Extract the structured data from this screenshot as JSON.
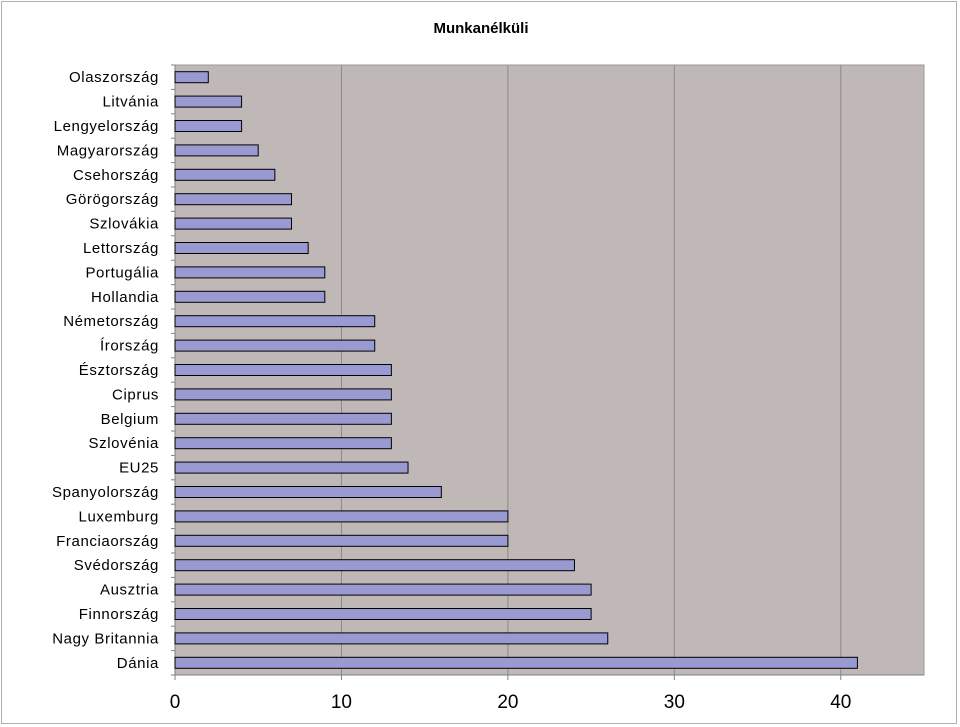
{
  "colors": {
    "plot_background": "#c0b8b6",
    "bar_fill": "#9a9ad2",
    "bar_stroke": "#000000",
    "gridline": "#8a8a8a",
    "axis": "#808080"
  },
  "chart_data": {
    "type": "bar",
    "orientation": "horizontal",
    "title": "Munkanélküli",
    "xlabel": "",
    "ylabel": "",
    "categories": [
      "Olaszország",
      "Litvánia",
      "Lengyelország",
      "Magyarország",
      "Csehország",
      "Görögország",
      "Szlovákia",
      "Lettország",
      "Portugália",
      "Hollandia",
      "Németország",
      "Írország",
      "Észtország",
      "Ciprus",
      "Belgium",
      "Szlovénia",
      "EU25",
      "Spanyolország",
      "Luxemburg",
      "Franciaország",
      "Svédország",
      "Ausztria",
      "Finnország",
      "Nagy Britannia",
      "Dánia"
    ],
    "values": [
      2,
      4,
      4,
      5,
      6,
      7,
      7,
      8,
      9,
      9,
      12,
      12,
      13,
      13,
      13,
      13,
      14,
      16,
      20,
      20,
      24,
      25,
      25,
      26,
      41
    ],
    "xlim": [
      0,
      45
    ],
    "xticks": [
      0,
      10,
      20,
      30,
      40
    ],
    "xtick_labels": [
      "0",
      "10",
      "20",
      "30",
      "40"
    ],
    "grid": true,
    "legend": "none"
  }
}
